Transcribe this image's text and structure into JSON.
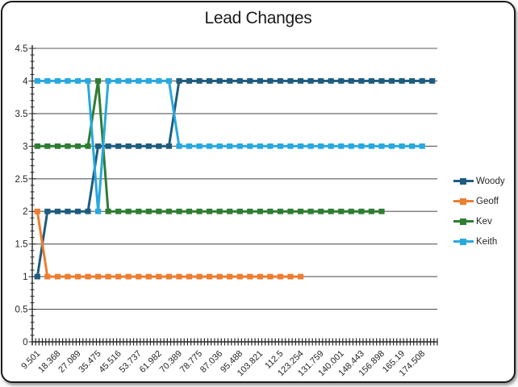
{
  "chart_data": {
    "type": "line",
    "title": "Lead Changes",
    "xlabel": "",
    "ylabel": "",
    "ylim": [
      0,
      4.5
    ],
    "y_step": 0.5,
    "y_tick_labels": [
      "0",
      "0.5",
      "1",
      "1.5",
      "2",
      "2.5",
      "3",
      "3.5",
      "4",
      "4.5"
    ],
    "categories_count": 40,
    "x_label_interval": 2,
    "x_tick_labels": [
      "9.501",
      "18.368",
      "27.089",
      "35.475",
      "45.516",
      "53.737",
      "61.982",
      "70.389",
      "78.775",
      "87.036",
      "95.488",
      "103.821",
      "112.5",
      "123.254",
      "131.759",
      "140.001",
      "148.443",
      "156.898",
      "165.19",
      "174.508"
    ],
    "x_label_rotation": 45,
    "grid": true,
    "grid_color": "#595959",
    "axis_color": "#262626",
    "legend_position": "right",
    "marker": "square",
    "series": [
      {
        "name": "Woody",
        "color": "#1E5C7E",
        "values": [
          1,
          2,
          2,
          2,
          2,
          2,
          3,
          3,
          3,
          3,
          3,
          3,
          3,
          3,
          4,
          4,
          4,
          4,
          4,
          4,
          4,
          4,
          4,
          4,
          4,
          4,
          4,
          4,
          4,
          4,
          4,
          4,
          4,
          4,
          4,
          4,
          4,
          4,
          4,
          4
        ]
      },
      {
        "name": "Geoff",
        "color": "#ED7D31",
        "values": [
          2,
          1,
          1,
          1,
          1,
          1,
          1,
          1,
          1,
          1,
          1,
          1,
          1,
          1,
          1,
          1,
          1,
          1,
          1,
          1,
          1,
          1,
          1,
          1,
          1,
          1,
          1
        ]
      },
      {
        "name": "Kev",
        "color": "#2E7D33",
        "values": [
          3,
          3,
          3,
          3,
          3,
          3,
          4,
          2,
          2,
          2,
          2,
          2,
          2,
          2,
          2,
          2,
          2,
          2,
          2,
          2,
          2,
          2,
          2,
          2,
          2,
          2,
          2,
          2,
          2,
          2,
          2,
          2,
          2,
          2,
          2
        ]
      },
      {
        "name": "Keith",
        "color": "#29A8DF",
        "values": [
          4,
          4,
          4,
          4,
          4,
          4,
          2,
          4,
          4,
          4,
          4,
          4,
          4,
          4,
          3,
          3,
          3,
          3,
          3,
          3,
          3,
          3,
          3,
          3,
          3,
          3,
          3,
          3,
          3,
          3,
          3,
          3,
          3,
          3,
          3,
          3,
          3,
          3,
          3
        ]
      }
    ]
  }
}
